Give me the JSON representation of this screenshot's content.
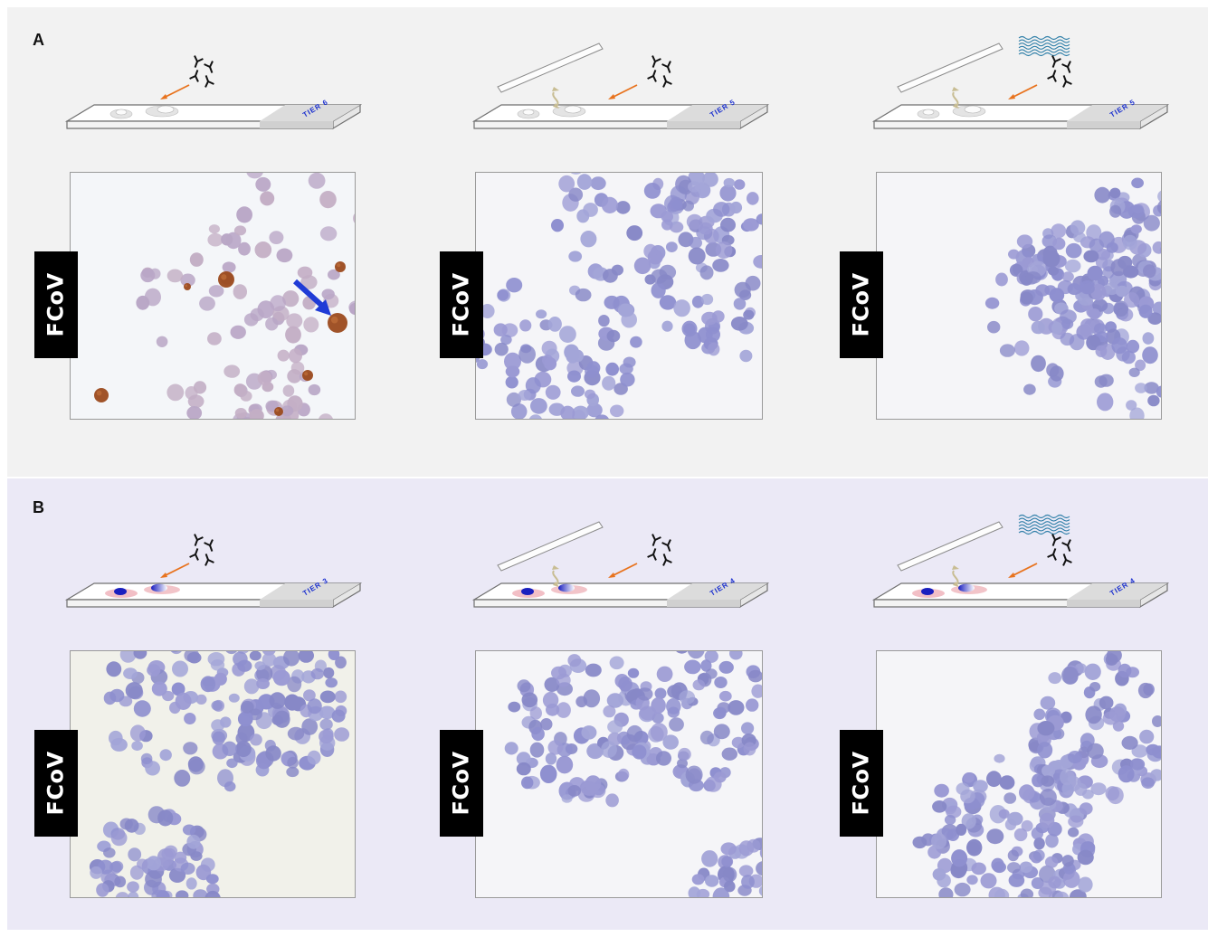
{
  "panels": [
    {
      "letter": "A",
      "columns": [
        {
          "tier": "TIER 6",
          "coverslip": false,
          "waves": false,
          "marker_label": "FCoV",
          "stain": "positive"
        },
        {
          "tier": "TIER 5",
          "coverslip": true,
          "waves": false,
          "marker_label": "FCoV",
          "stain": "negative"
        },
        {
          "tier": "TIER 5",
          "coverslip": true,
          "waves": true,
          "marker_label": "FCoV",
          "stain": "negative"
        }
      ]
    },
    {
      "letter": "B",
      "columns": [
        {
          "tier": "TIER 3",
          "coverslip": false,
          "waves": false,
          "marker_label": "FCoV",
          "stain": "negative"
        },
        {
          "tier": "TIER 4",
          "coverslip": true,
          "waves": false,
          "marker_label": "FCoV",
          "stain": "negative"
        },
        {
          "tier": "TIER 4",
          "coverslip": true,
          "waves": true,
          "marker_label": "FCoV",
          "stain": "negative"
        }
      ]
    }
  ],
  "colors": {
    "panel_a_bg": "#f2f2f2",
    "panel_b_bg": "#ebe9f6",
    "arrow_orange": "#e8731e",
    "pointer_blue": "#1f3bd6",
    "antibody": "#111111",
    "tier_text": "#1a2fcf",
    "wave_teal": "#2f7fa8",
    "nucleus_blue": "#8e8fcf",
    "dab_brown": "#9b4a1e"
  },
  "icons": [
    "antibody-icon",
    "orange-arrow-icon",
    "slide-icon",
    "coverslip-icon",
    "return-arrow-icon",
    "wave-icon",
    "blue-pointer-arrow-icon"
  ]
}
